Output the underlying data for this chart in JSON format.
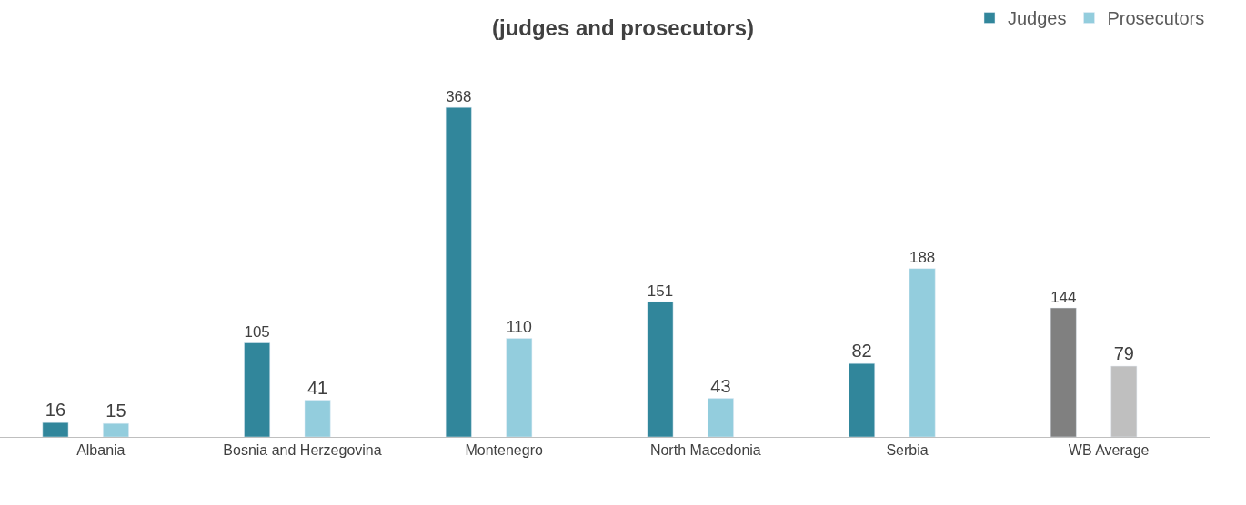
{
  "chart_data": {
    "type": "bar",
    "title": "(judges and prosecutors)",
    "categories": [
      "Albania",
      "Bosnia and Herzegovina",
      "Montenegro",
      "North Macedonia",
      "Serbia",
      "WB Average"
    ],
    "series": [
      {
        "name": "Judges",
        "color": "#31869b",
        "colors": [
          "#31869b",
          "#31869b",
          "#31869b",
          "#31869b",
          "#31869b",
          "#808080"
        ],
        "values": [
          16,
          105,
          368,
          151,
          82,
          144
        ]
      },
      {
        "name": "Prosecutors",
        "color": "#93cddd",
        "colors": [
          "#93cddd",
          "#93cddd",
          "#93cddd",
          "#93cddd",
          "#93cddd",
          "#bfbfbf"
        ],
        "values": [
          15,
          41,
          110,
          43,
          188,
          79
        ]
      }
    ],
    "data_labels": true,
    "legend": "top right"
  }
}
